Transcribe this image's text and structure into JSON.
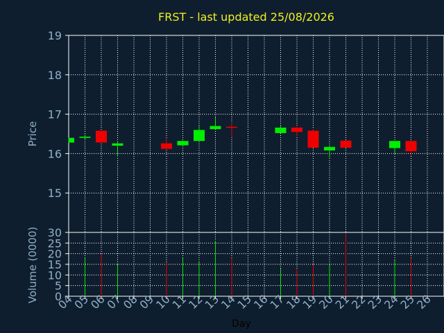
{
  "chart_data": [
    {
      "type": "candlestick",
      "title": "FRST - last updated 25/08/2026",
      "ylabel": "Price",
      "ylim": [
        14.0,
        19.0
      ],
      "y_ticks": [
        "15",
        "16",
        "17",
        "18",
        "19"
      ],
      "grid": true,
      "up_color": "#00ee00",
      "down_color": "#ee0000",
      "x_categories": [
        "04",
        "05",
        "06",
        "07",
        "08",
        "09",
        "10",
        "11",
        "12",
        "13",
        "14",
        "15",
        "16",
        "17",
        "18",
        "19",
        "20",
        "21",
        "22",
        "23",
        "24",
        "25",
        "26"
      ],
      "candles": [
        {
          "day": "04",
          "open": 16.28,
          "high": 16.4,
          "low": 16.28,
          "close": 16.4
        },
        {
          "day": "05",
          "open": 16.4,
          "high": 16.48,
          "low": 16.35,
          "close": 16.43
        },
        {
          "day": "06",
          "open": 16.58,
          "high": 16.58,
          "low": 16.28,
          "close": 16.28
        },
        {
          "day": "07",
          "open": 16.2,
          "high": 16.28,
          "low": 15.92,
          "close": 16.26
        },
        {
          "day": "10",
          "open": 16.26,
          "high": 16.38,
          "low": 16.12,
          "close": 16.12
        },
        {
          "day": "11",
          "open": 16.21,
          "high": 16.32,
          "low": 16.21,
          "close": 16.32
        },
        {
          "day": "12",
          "open": 16.32,
          "high": 16.7,
          "low": 16.32,
          "close": 16.6
        },
        {
          "day": "13",
          "open": 16.62,
          "high": 16.92,
          "low": 16.62,
          "close": 16.7
        },
        {
          "day": "14",
          "open": 16.68,
          "high": 16.78,
          "low": 16.43,
          "close": 16.66
        },
        {
          "day": "17",
          "open": 16.52,
          "high": 16.7,
          "low": 16.52,
          "close": 16.66
        },
        {
          "day": "18",
          "open": 16.66,
          "high": 16.68,
          "low": 16.44,
          "close": 16.55
        },
        {
          "day": "19",
          "open": 16.58,
          "high": 16.62,
          "low": 16.15,
          "close": 16.15
        },
        {
          "day": "20",
          "open": 16.08,
          "high": 16.17,
          "low": 15.9,
          "close": 16.17
        },
        {
          "day": "21",
          "open": 16.33,
          "high": 16.33,
          "low": 16.15,
          "close": 16.15
        },
        {
          "day": "24",
          "open": 16.14,
          "high": 16.32,
          "low": 15.98,
          "close": 16.32
        },
        {
          "day": "25",
          "open": 16.32,
          "high": 16.32,
          "low": 15.94,
          "close": 16.06
        }
      ]
    },
    {
      "type": "bar",
      "xlabel": "Day",
      "ylabel": "Volume (0000)",
      "ylim": [
        0,
        30
      ],
      "y_ticks": [
        "0",
        "5",
        "10",
        "15",
        "20",
        "25",
        "30"
      ],
      "grid": true,
      "categories": [
        "04",
        "05",
        "06",
        "07",
        "08",
        "09",
        "10",
        "11",
        "12",
        "13",
        "14",
        "15",
        "16",
        "17",
        "18",
        "19",
        "20",
        "21",
        "22",
        "23",
        "24",
        "25",
        "26"
      ],
      "volume_bars": [
        {
          "day": "05",
          "value": 18,
          "color": "#00ee00"
        },
        {
          "day": "06",
          "value": 20,
          "color": "#ee0000"
        },
        {
          "day": "07",
          "value": 15,
          "color": "#00ee00"
        },
        {
          "day": "10",
          "value": 16,
          "color": "#ee0000"
        },
        {
          "day": "11",
          "value": 18,
          "color": "#00ee00"
        },
        {
          "day": "12",
          "value": 16,
          "color": "#00ee00"
        },
        {
          "day": "13",
          "value": 26,
          "color": "#00ee00"
        },
        {
          "day": "14",
          "value": 18,
          "color": "#ee0000"
        },
        {
          "day": "17",
          "value": 13,
          "color": "#00ee00"
        },
        {
          "day": "18",
          "value": 13,
          "color": "#ee0000"
        },
        {
          "day": "19",
          "value": 15,
          "color": "#ee0000"
        },
        {
          "day": "20",
          "value": 15,
          "color": "#00ee00"
        },
        {
          "day": "21",
          "value": 29,
          "color": "#ee0000"
        },
        {
          "day": "24",
          "value": 17,
          "color": "#00ee00"
        },
        {
          "day": "25",
          "value": 18,
          "color": "#ee0000"
        }
      ]
    }
  ]
}
